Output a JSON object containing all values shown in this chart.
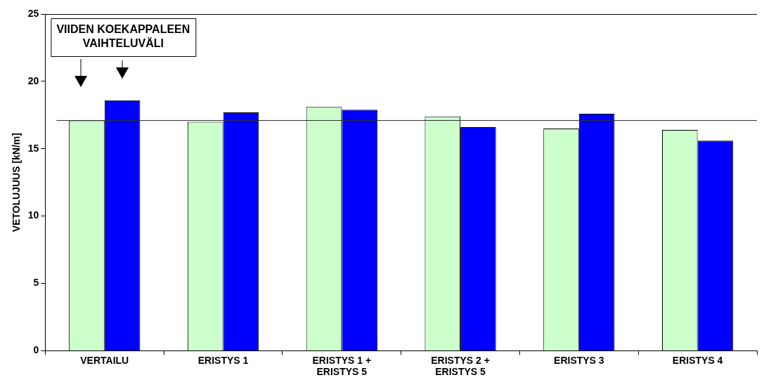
{
  "chart_data": {
    "type": "bar",
    "ylabel": "VETOLUJUUS [kN/m]",
    "categories": [
      "VERTAILU",
      "ERISTYS 1",
      "ERISTYS 1 +\nERISTYS 5",
      "ERISTYS 2 +\nERISTYS 5",
      "ERISTYS 3",
      "ERISTYS 4"
    ],
    "series": [
      {
        "color": "#ccffcc",
        "values": [
          17.1,
          17.0,
          18.1,
          17.4,
          16.5,
          16.4
        ]
      },
      {
        "color": "#0000ff",
        "values": [
          18.6,
          17.7,
          17.9,
          16.6,
          17.6,
          15.6
        ]
      }
    ],
    "ylim": [
      0,
      25
    ],
    "yticks": [
      0,
      5,
      10,
      15,
      20,
      25
    ],
    "grid": false,
    "legend": false,
    "ref_lines": [
      {
        "axis": "y",
        "value": 17.1
      }
    ],
    "annotations": [
      "VIIDEN KOEKAPPALEEN\nVAIHTELUVÄLI"
    ]
  }
}
